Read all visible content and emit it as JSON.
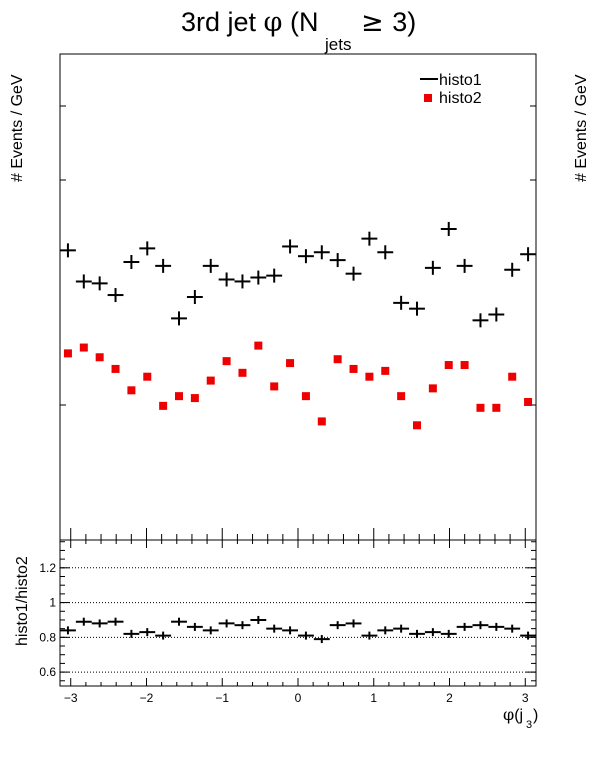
{
  "chart_data": [
    {
      "type": "scatter",
      "title": {
        "prefix": "3rd jet ",
        "phi": "φ",
        "open": " (N",
        "sub": "jets",
        "geq": " ≥ ",
        "close": "3)"
      },
      "ylabel": "# Events / GeV",
      "ylabel_right": "# Events / GeV",
      "xlim": [
        -3.1416,
        3.1416
      ],
      "legend": {
        "position": "top-right",
        "entries": [
          "histo1",
          "histo2"
        ]
      },
      "series": [
        {
          "name": "histo1",
          "marker": "cross",
          "color": "#000000",
          "values": [
            1.49,
            1.33,
            1.32,
            1.26,
            1.43,
            1.5,
            1.41,
            1.14,
            1.25,
            1.41,
            1.34,
            1.33,
            1.35,
            1.36,
            1.51,
            1.46,
            1.48,
            1.44,
            1.37,
            1.55,
            1.48,
            1.22,
            1.19,
            1.4,
            1.6,
            1.41,
            1.13,
            1.16,
            1.39,
            1.47
          ]
        },
        {
          "name": "histo2",
          "marker": "square",
          "color": "#ee0000",
          "values": [
            0.96,
            0.99,
            0.94,
            0.88,
            0.77,
            0.84,
            0.69,
            0.74,
            0.73,
            0.82,
            0.92,
            0.86,
            1.0,
            0.79,
            0.91,
            0.74,
            0.61,
            0.93,
            0.88,
            0.84,
            0.87,
            0.74,
            0.59,
            0.78,
            0.9,
            0.9,
            0.68,
            0.68,
            0.84,
            0.71
          ]
        }
      ]
    },
    {
      "type": "scatter",
      "ylabel": "histo1/histo2",
      "xlabel": {
        "phi": "φ",
        "open": "(j",
        "sub": "3",
        "close": ")"
      },
      "xlim": [
        -3.1416,
        3.1416
      ],
      "ylim": [
        0.52,
        1.36
      ],
      "grid": "dotted horizontal at 0.6, 0.8, 1, 1.2",
      "yticks": [
        0.6,
        0.8,
        1,
        1.2
      ],
      "ytick_labels": [
        "0.6",
        "0.8",
        "1",
        "1.2"
      ],
      "xticks": [
        -3,
        -2,
        -1,
        0,
        1,
        2,
        3
      ],
      "xtick_labels": [
        "−3",
        "−2",
        "−1",
        "0",
        "1",
        "2",
        "3"
      ],
      "series": [
        {
          "name": "histo1/histo2",
          "marker": "cross",
          "color": "#000000",
          "values": [
            0.84,
            0.89,
            0.88,
            0.89,
            0.82,
            0.83,
            0.81,
            0.89,
            0.86,
            0.84,
            0.88,
            0.87,
            0.9,
            0.85,
            0.84,
            0.81,
            0.79,
            0.87,
            0.88,
            0.81,
            0.84,
            0.85,
            0.82,
            0.83,
            0.82,
            0.86,
            0.87,
            0.86,
            0.85,
            0.81
          ]
        }
      ]
    }
  ]
}
